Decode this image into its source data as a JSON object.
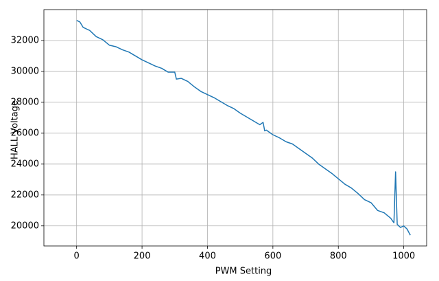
{
  "chart_data": {
    "type": "line",
    "xlabel": "PWM Setting",
    "ylabel": "HALL Voltage",
    "x": [
      0,
      10,
      20,
      40,
      60,
      80,
      100,
      120,
      140,
      160,
      180,
      200,
      220,
      240,
      260,
      280,
      300,
      305,
      320,
      340,
      360,
      380,
      400,
      420,
      440,
      460,
      480,
      500,
      520,
      540,
      560,
      570,
      575,
      580,
      600,
      620,
      640,
      660,
      680,
      700,
      720,
      740,
      760,
      780,
      800,
      820,
      840,
      860,
      880,
      900,
      920,
      940,
      960,
      970,
      975,
      980,
      990,
      1000,
      1010,
      1020
    ],
    "series": [
      {
        "name": "HALL Voltage",
        "color": "#1f77b4",
        "values": [
          33300,
          33200,
          32850,
          32650,
          32250,
          32050,
          31700,
          31600,
          31400,
          31250,
          31000,
          30750,
          30550,
          30350,
          30200,
          29950,
          29950,
          29500,
          29550,
          29350,
          29000,
          28700,
          28500,
          28300,
          28050,
          27800,
          27600,
          27300,
          27050,
          26800,
          26550,
          26700,
          26150,
          26200,
          25900,
          25700,
          25450,
          25300,
          25000,
          24700,
          24400,
          24000,
          23700,
          23400,
          23050,
          22700,
          22450,
          22100,
          21700,
          21500,
          21000,
          20850,
          20500,
          20200,
          23500,
          20100,
          19900,
          20000,
          19800,
          19400
        ]
      }
    ],
    "xlim": [
      -100,
      1070
    ],
    "ylim": [
      18700,
      34000
    ],
    "xticks": [
      0,
      200,
      400,
      600,
      800,
      1000
    ],
    "yticks": [
      20000,
      22000,
      24000,
      26000,
      28000,
      30000,
      32000
    ],
    "grid": true
  }
}
